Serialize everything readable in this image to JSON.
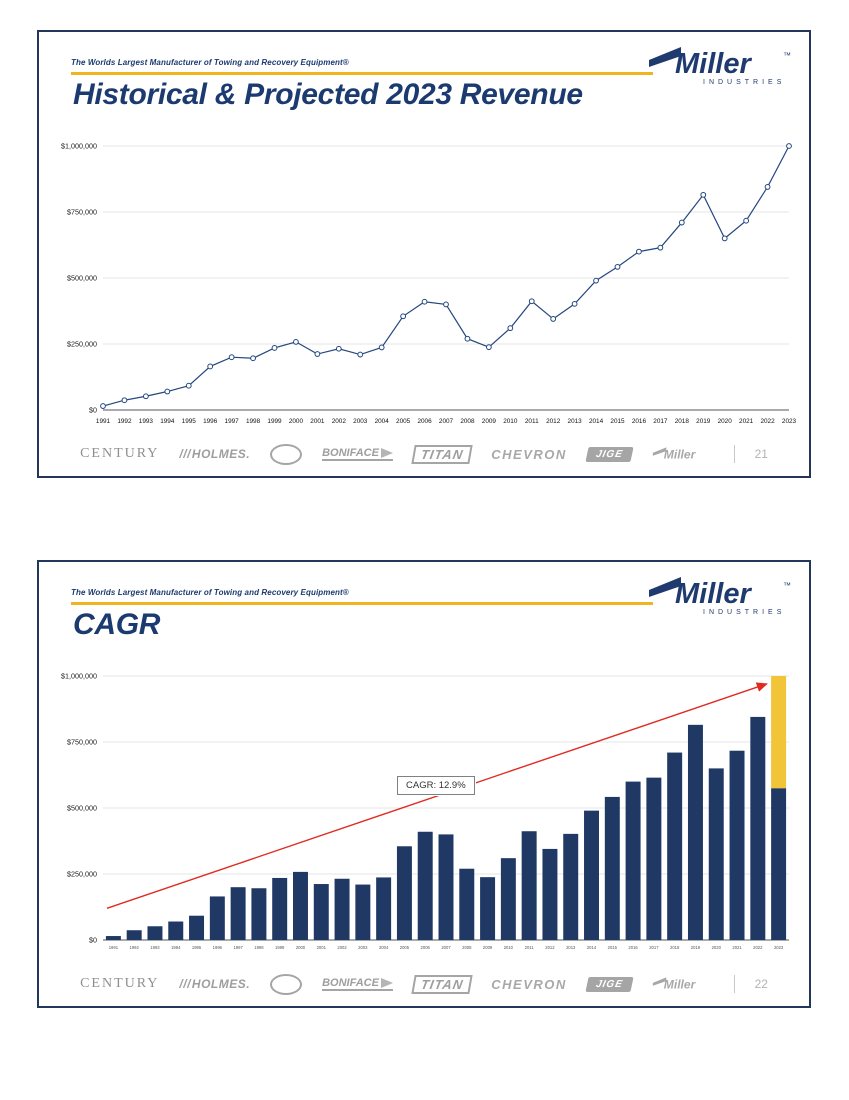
{
  "colors": {
    "navy": "#24477e",
    "bar": "#1f3864",
    "gold": "#f0b41e",
    "grid": "#dcdcdc",
    "red": "#e02b20"
  },
  "slide1": {
    "tagline": "The Worlds Largest Manufacturer of Towing and Recovery Equipment®",
    "title": "Historical & Projected 2023 Revenue",
    "page_number": "21"
  },
  "slide2": {
    "tagline": "The Worlds Largest Manufacturer of Towing and Recovery Equipment®",
    "title": "CAGR",
    "page_number": "22"
  },
  "logo": {
    "name": "Miller",
    "tm": "™",
    "sub": "INDUSTRIES"
  },
  "footer": {
    "brands": [
      {
        "label": "CENTURY"
      },
      {
        "prefix": "///",
        "label": "HOLMES."
      },
      {
        "label": ""
      },
      {
        "label": "BONIFACE"
      },
      {
        "label": "TITAN"
      },
      {
        "label": "CHEVRON"
      },
      {
        "label": "JIGE"
      }
    ]
  },
  "chart_data": [
    {
      "type": "line",
      "title": "Historical & Projected 2023 Revenue",
      "x": [
        1991,
        1992,
        1993,
        1994,
        1995,
        1996,
        1997,
        1998,
        1999,
        2000,
        2001,
        2002,
        2003,
        2004,
        2005,
        2006,
        2007,
        2008,
        2009,
        2010,
        2011,
        2012,
        2013,
        2014,
        2015,
        2016,
        2017,
        2018,
        2019,
        2020,
        2021,
        2022,
        2023
      ],
      "values": [
        15000,
        37000,
        52000,
        70000,
        92000,
        165000,
        200000,
        196000,
        235000,
        258000,
        212000,
        232000,
        210000,
        237000,
        355000,
        410000,
        400000,
        270000,
        238000,
        310000,
        412000,
        345000,
        402000,
        490000,
        542000,
        600000,
        615000,
        710000,
        815000,
        650000,
        717000,
        845000,
        1000000
      ],
      "ylim": [
        0,
        1000000
      ],
      "yticks": [
        "$0",
        "$250,000",
        "$500,000",
        "$750,000",
        "$1,000,000"
      ],
      "xlabel": "",
      "ylabel": "",
      "grid": true,
      "legend": "none",
      "marker": "open-circle"
    },
    {
      "type": "bar",
      "title": "CAGR",
      "x": [
        1991,
        1992,
        1993,
        1994,
        1995,
        1996,
        1997,
        1998,
        1999,
        2000,
        2001,
        2002,
        2003,
        2004,
        2005,
        2006,
        2007,
        2008,
        2009,
        2010,
        2011,
        2012,
        2013,
        2014,
        2015,
        2016,
        2017,
        2018,
        2019,
        2020,
        2021,
        2022,
        2023
      ],
      "values": [
        15000,
        37000,
        52000,
        70000,
        92000,
        165000,
        200000,
        196000,
        235000,
        258000,
        212000,
        232000,
        210000,
        237000,
        355000,
        410000,
        400000,
        270000,
        238000,
        310000,
        412000,
        345000,
        402000,
        490000,
        542000,
        600000,
        615000,
        710000,
        815000,
        650000,
        717000,
        845000,
        1000000
      ],
      "ylim": [
        0,
        1000000
      ],
      "yticks": [
        "$0",
        "$250,000",
        "$500,000",
        "$750,000",
        "$1,000,000"
      ],
      "xlabel": "",
      "ylabel": "",
      "grid": true,
      "legend": "none",
      "annotation": "CAGR: 12.9%",
      "highlight": {
        "year": 2023,
        "base_value": 575000,
        "total_value": 1000000,
        "color": "#f2c437"
      },
      "trend_arrow": {
        "start_value": 120000,
        "end_value": 970000,
        "color": "#e02b20"
      }
    }
  ]
}
